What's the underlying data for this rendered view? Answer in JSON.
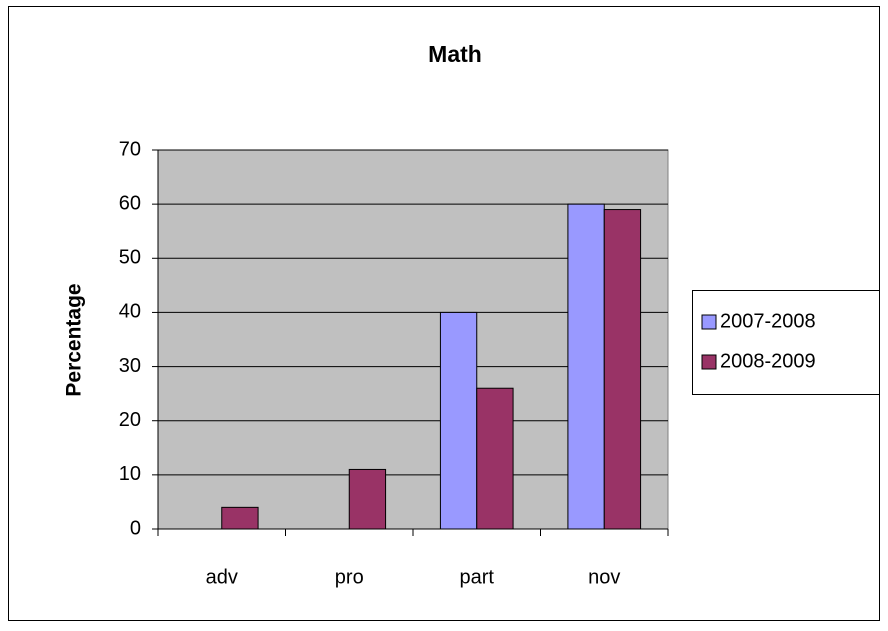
{
  "chart_data": {
    "type": "bar",
    "title": "Math",
    "y_label": "Percentage",
    "categories": [
      "adv",
      "pro",
      "part",
      "nov"
    ],
    "series": [
      {
        "name": "2007-2008",
        "color": "#9999ff",
        "values": [
          0,
          0,
          40,
          60
        ]
      },
      {
        "name": "2008-2009",
        "color": "#993366",
        "values": [
          4,
          11,
          26,
          59
        ]
      }
    ],
    "ylim": [
      0,
      70
    ],
    "yticks": [
      0,
      10,
      20,
      30,
      40,
      50,
      60,
      70
    ],
    "grid": true,
    "legend": "right"
  }
}
